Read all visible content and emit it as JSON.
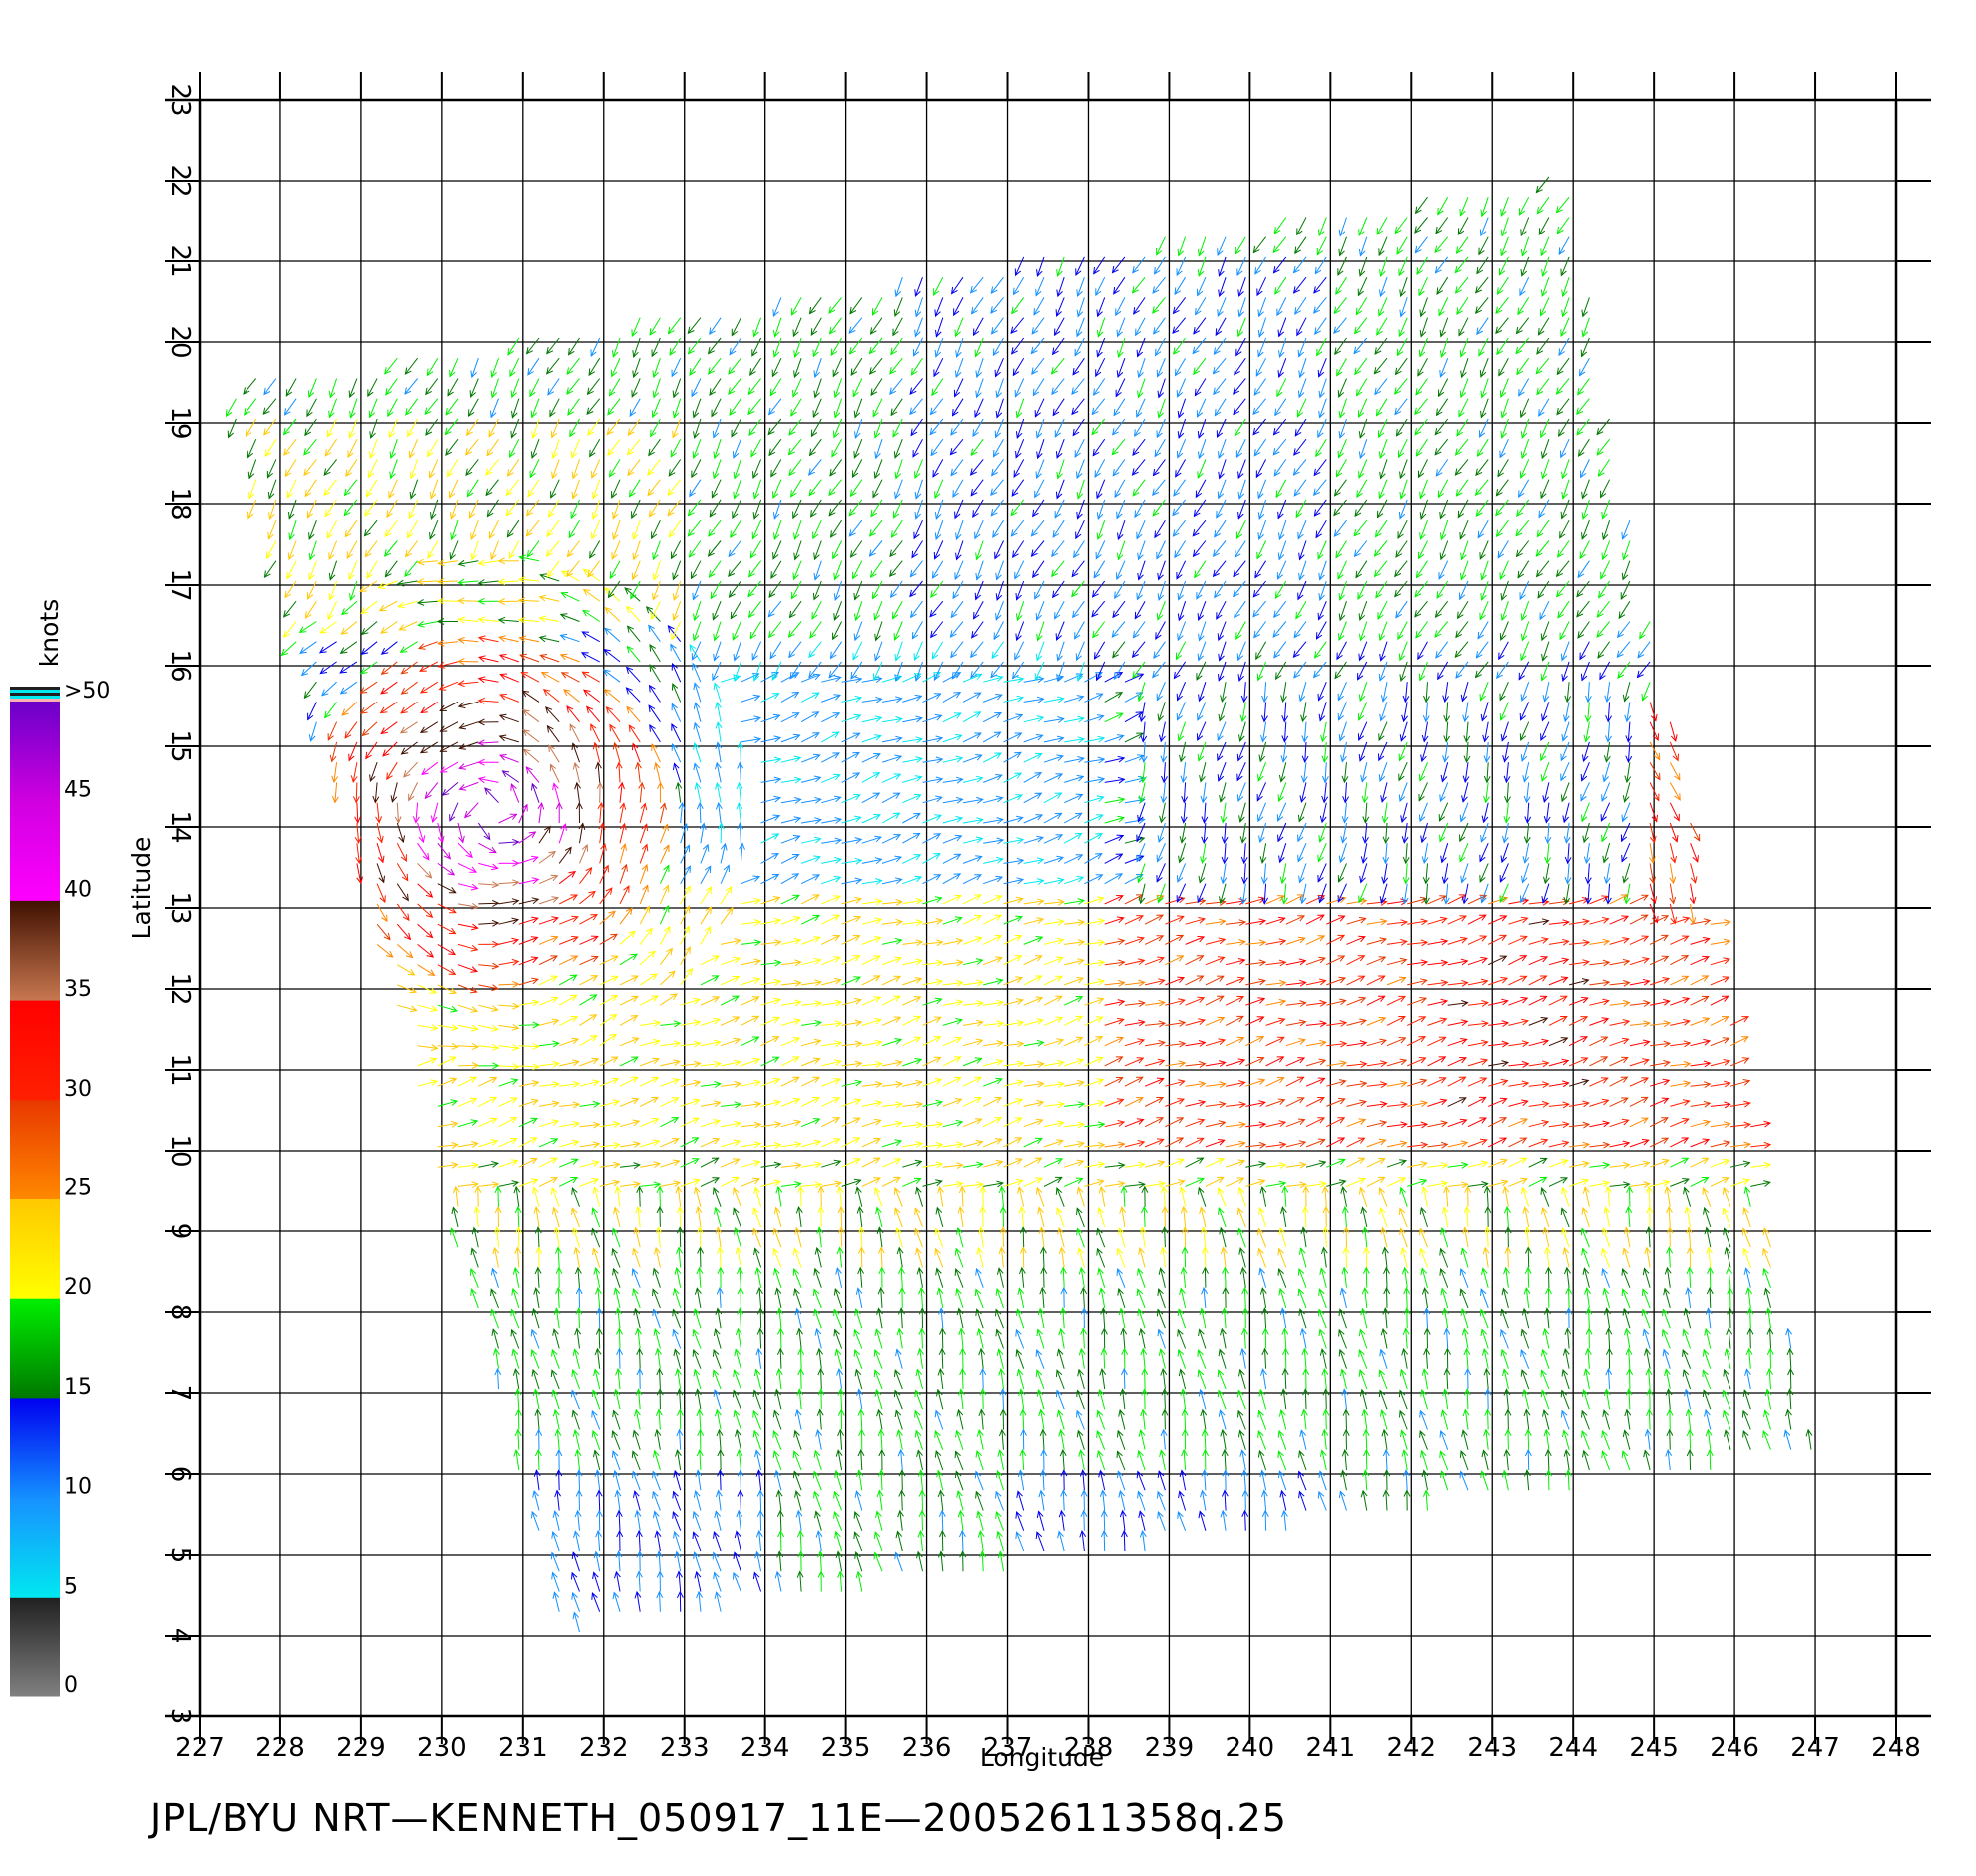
{
  "chart_data": {
    "type": "scatter",
    "subtype": "wind vector field (scatterometer)",
    "title": "",
    "footer": "JPL/BYU  NRT—KENNETH_050917_11E—20052611358q.25",
    "xlabel": "Longitude",
    "ylabel": "Latitude",
    "xlim": [
      227,
      248
    ],
    "ylim": [
      3,
      23
    ],
    "xticks": [
      "227",
      "228",
      "229",
      "230",
      "231",
      "232",
      "233",
      "234",
      "235",
      "236",
      "237",
      "238",
      "239",
      "240",
      "241",
      "242",
      "243",
      "244",
      "245",
      "246",
      "247",
      "248"
    ],
    "yticks": [
      "3",
      "4",
      "5",
      "6",
      "7",
      "8",
      "9",
      "10",
      "11",
      "12",
      "13",
      "14",
      "15",
      "16",
      "17",
      "18",
      "19",
      "20",
      "21",
      "22",
      "23"
    ],
    "grid": true,
    "swath_corners": [
      [
        227.3,
        19.5
      ],
      [
        243.9,
        22.1
      ],
      [
        247.0,
        6.2
      ],
      [
        231.5,
        4.0
      ]
    ],
    "colorbar": {
      "title": "knots",
      "labels": [
        "0",
        "5",
        "10",
        "15",
        "20",
        "25",
        "30",
        "35",
        "40",
        "45",
        ">50"
      ],
      "bins": [
        {
          "range": "0-5",
          "colors": [
            "#808080",
            "#202020"
          ]
        },
        {
          "range": "5-10",
          "colors": [
            "#00e8f0",
            "#1890ff"
          ]
        },
        {
          "range": "10-15",
          "colors": [
            "#1490ff",
            "#0000f0"
          ]
        },
        {
          "range": "15-20",
          "colors": [
            "#007800",
            "#00f000"
          ]
        },
        {
          "range": "20-25",
          "colors": [
            "#ffff00",
            "#ffc800"
          ]
        },
        {
          "range": "25-30",
          "colors": [
            "#ff8800",
            "#e83800"
          ]
        },
        {
          "range": "30-35",
          "colors": [
            "#ff2000",
            "#ff0000"
          ]
        },
        {
          "range": "35-40",
          "colors": [
            "#c87850",
            "#401000"
          ]
        },
        {
          "range": "40-45",
          "colors": [
            "#ff00ff",
            "#d000e0"
          ]
        },
        {
          "range": "45-50",
          "colors": [
            "#d000e0",
            "#6a00c8"
          ]
        }
      ]
    },
    "regions": [
      {
        "name": "cyclone center (Kenneth)",
        "lon": 230.6,
        "lat": 14.2,
        "speed_kt": 45
      },
      {
        "name": "light winds",
        "lon": 235.5,
        "lat": 14.4,
        "speed_kt": 8
      },
      {
        "name": "northern blue zone",
        "lon": 238.5,
        "lat": 18.5,
        "speed_kt": 13
      },
      {
        "name": "southern blue zone",
        "lon": 233.0,
        "lat": 5.0,
        "speed_kt": 13
      },
      {
        "name": "strong westerly band",
        "lon": 242.5,
        "lat": 11.5,
        "speed_kt": 32
      },
      {
        "name": "eastern edge jet",
        "lon": 245.5,
        "lat": 14.0,
        "speed_kt": 33
      }
    ],
    "legend_position": "left"
  }
}
